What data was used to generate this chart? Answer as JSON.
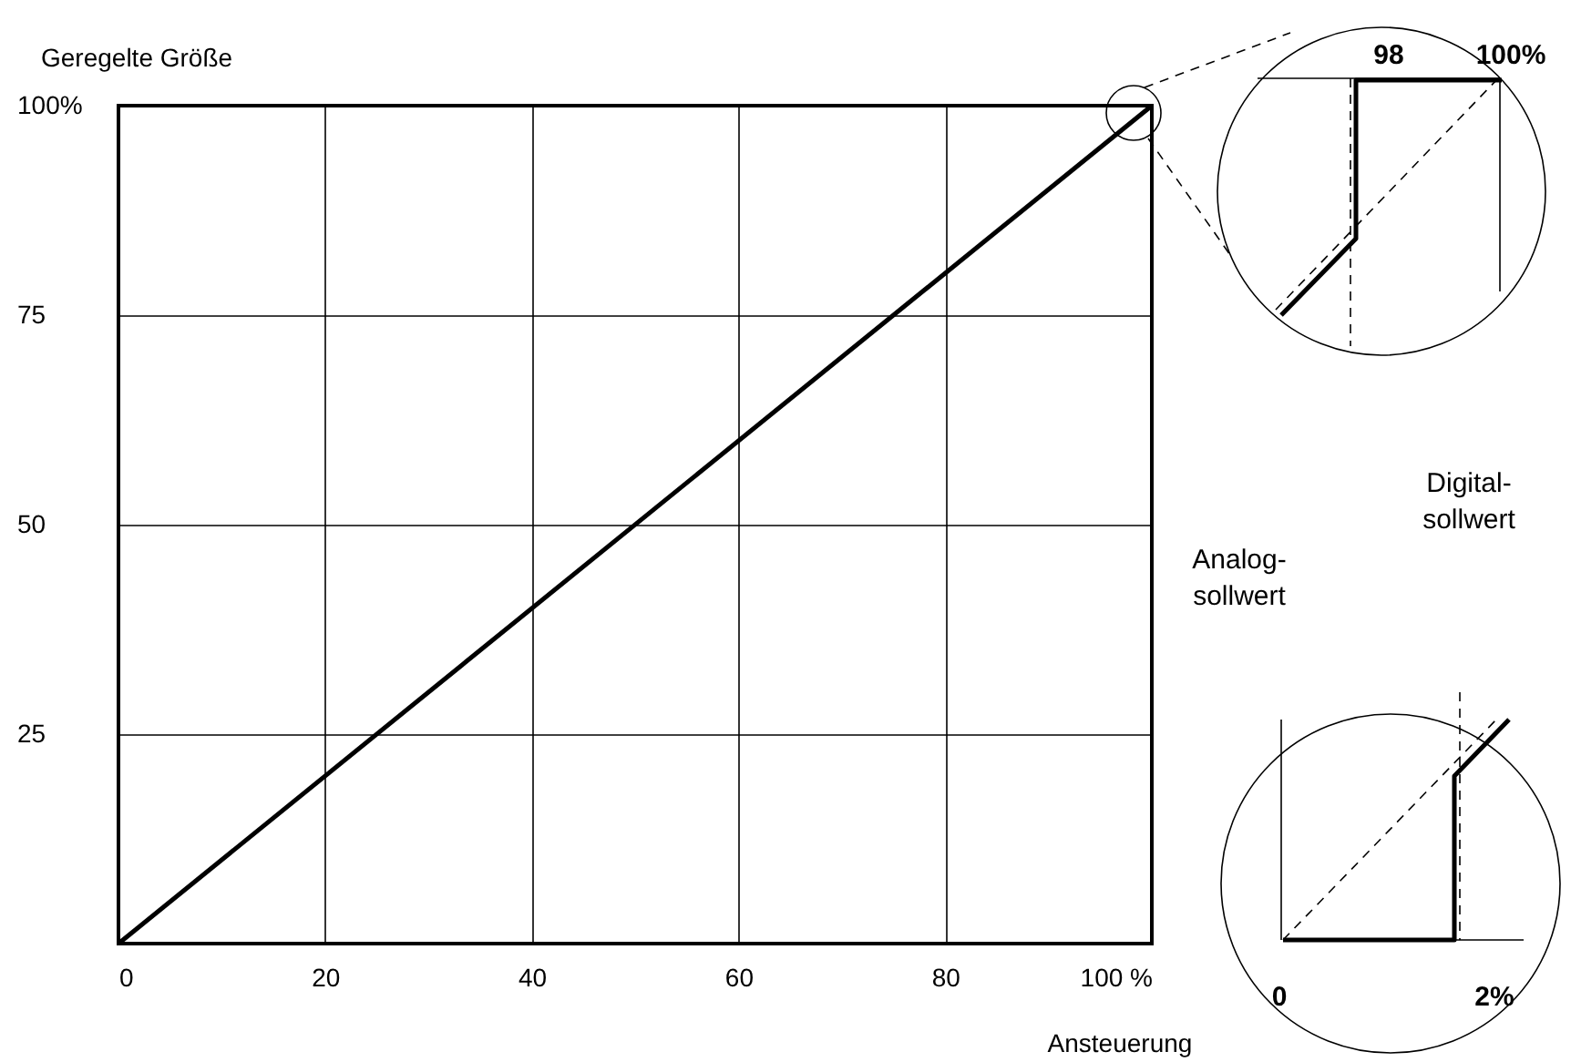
{
  "chart_data": {
    "type": "line",
    "xlabel": "Ansteuerung",
    "ylabel": "Geregelte Größe",
    "x": [
      0,
      100
    ],
    "series": [
      {
        "color": "#000000",
        "values": [
          0,
          100
        ]
      }
    ],
    "xlim": [
      0,
      100
    ],
    "ylim": [
      0,
      100
    ],
    "xticks": [
      0,
      20,
      40,
      60,
      80,
      {
        "value": 100,
        "label": "100 %"
      }
    ],
    "yticks": [
      {
        "value": 0,
        "label": null
      },
      25,
      50,
      75,
      {
        "value": 100,
        "label": "100%"
      }
    ],
    "grid": true,
    "legend": false,
    "marker": "none",
    "line_style": "solid",
    "annotations": [
      "98",
      "100%",
      "0",
      "2%",
      "Analog-\nsollwert",
      "Digital-\nsollwert"
    ]
  }
}
